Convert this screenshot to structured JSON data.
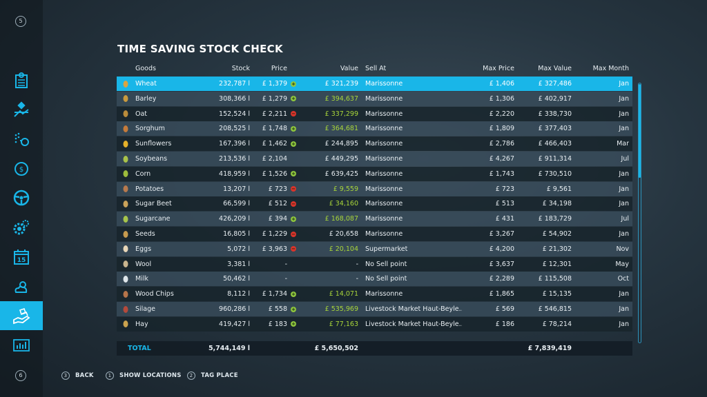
{
  "title": "TIME SAVING STOCK CHECK",
  "sidebar": {
    "top_key": "5",
    "bottom_key": "6",
    "items": [
      {
        "icon": "calendar-list-icon"
      },
      {
        "icon": "satellite-map-icon"
      },
      {
        "icon": "sprayer-icon"
      },
      {
        "icon": "price-tag-icon"
      },
      {
        "icon": "steering-wheel-icon"
      },
      {
        "icon": "gears-icon"
      },
      {
        "icon": "calendar-icon",
        "label": "15"
      },
      {
        "icon": "weather-icon"
      },
      {
        "icon": "hand-money-icon",
        "active": true
      },
      {
        "icon": "statistics-icon"
      }
    ]
  },
  "table": {
    "headers": {
      "goods": "Goods",
      "stock": "Stock",
      "price": "Price",
      "value": "Value",
      "sell_at": "Sell At",
      "max_price": "Max Price",
      "max_value": "Max Value",
      "max_month": "Max Month"
    },
    "rows": [
      {
        "icon": "wheat-icon",
        "goods": "Wheat",
        "stock": "232,787 l",
        "price": "£ 1,379",
        "trend": "up",
        "value": "£ 321,239",
        "value_green": false,
        "sell_at": "Marissonne",
        "max_price": "£ 1,406",
        "max_value": "£ 327,486",
        "max_month": "Jan"
      },
      {
        "icon": "barley-icon",
        "goods": "Barley",
        "stock": "308,366 l",
        "price": "£ 1,279",
        "trend": "up",
        "value": "£ 394,637",
        "value_green": true,
        "sell_at": "Marissonne",
        "max_price": "£ 1,306",
        "max_value": "£ 402,917",
        "max_month": "Jan"
      },
      {
        "icon": "oat-icon",
        "goods": "Oat",
        "stock": "152,524 l",
        "price": "£ 2,211",
        "trend": "down",
        "value": "£ 337,299",
        "value_green": true,
        "sell_at": "Marissonne",
        "max_price": "£ 2,220",
        "max_value": "£ 338,730",
        "max_month": "Jan"
      },
      {
        "icon": "sorghum-icon",
        "goods": "Sorghum",
        "stock": "208,525 l",
        "price": "£ 1,748",
        "trend": "up",
        "value": "£ 364,681",
        "value_green": true,
        "sell_at": "Marissonne",
        "max_price": "£ 1,809",
        "max_value": "£ 377,403",
        "max_month": "Jan"
      },
      {
        "icon": "sunflower-icon",
        "goods": "Sunflowers",
        "stock": "167,396 l",
        "price": "£ 1,462",
        "trend": "up",
        "value": "£ 244,895",
        "value_green": false,
        "sell_at": "Marissonne",
        "max_price": "£ 2,786",
        "max_value": "£ 466,403",
        "max_month": "Mar"
      },
      {
        "icon": "soybean-icon",
        "goods": "Soybeans",
        "stock": "213,536 l",
        "price": "£ 2,104",
        "trend": "",
        "value": "£ 449,295",
        "value_green": false,
        "sell_at": "Marissonne",
        "max_price": "£ 4,267",
        "max_value": "£ 911,314",
        "max_month": "Jul"
      },
      {
        "icon": "corn-icon",
        "goods": "Corn",
        "stock": "418,959 l",
        "price": "£ 1,526",
        "trend": "up",
        "value": "£ 639,425",
        "value_green": false,
        "sell_at": "Marissonne",
        "max_price": "£ 1,743",
        "max_value": "£ 730,510",
        "max_month": "Jan"
      },
      {
        "icon": "potato-icon",
        "goods": "Potatoes",
        "stock": "13,207 l",
        "price": "£ 723",
        "trend": "down",
        "value": "£ 9,559",
        "value_green": true,
        "sell_at": "Marissonne",
        "max_price": "£ 723",
        "max_value": "£ 9,561",
        "max_month": "Jan"
      },
      {
        "icon": "sugar-beet-icon",
        "goods": "Sugar Beet",
        "stock": "66,599 l",
        "price": "£ 512",
        "trend": "down",
        "value": "£ 34,160",
        "value_green": true,
        "sell_at": "Marissonne",
        "max_price": "£ 513",
        "max_value": "£ 34,198",
        "max_month": "Jan"
      },
      {
        "icon": "sugarcane-icon",
        "goods": "Sugarcane",
        "stock": "426,209 l",
        "price": "£ 394",
        "trend": "up",
        "value": "£ 168,087",
        "value_green": true,
        "sell_at": "Marissonne",
        "max_price": "£ 431",
        "max_value": "£ 183,729",
        "max_month": "Jul"
      },
      {
        "icon": "seeds-icon",
        "goods": "Seeds",
        "stock": "16,805 l",
        "price": "£ 1,229",
        "trend": "down",
        "value": "£ 20,658",
        "value_green": false,
        "sell_at": "Marissonne",
        "max_price": "£ 3,267",
        "max_value": "£ 54,902",
        "max_month": "Jan"
      },
      {
        "icon": "eggs-icon",
        "goods": "Eggs",
        "stock": "5,072 l",
        "price": "£ 3,963",
        "trend": "down",
        "value": "£ 20,104",
        "value_green": true,
        "sell_at": "Supermarket",
        "max_price": "£ 4,200",
        "max_value": "£ 21,302",
        "max_month": "Nov"
      },
      {
        "icon": "wool-icon",
        "goods": "Wool",
        "stock": "3,381 l",
        "price": "-",
        "trend": "",
        "value": "-",
        "value_green": false,
        "sell_at": "No Sell point",
        "max_price": "£ 3,637",
        "max_value": "£ 12,301",
        "max_month": "May"
      },
      {
        "icon": "milk-icon",
        "goods": "Milk",
        "stock": "50,462 l",
        "price": "-",
        "trend": "",
        "value": "-",
        "value_green": false,
        "sell_at": "No Sell point",
        "max_price": "£ 2,289",
        "max_value": "£ 115,508",
        "max_month": "Oct"
      },
      {
        "icon": "wood-chips-icon",
        "goods": "Wood Chips",
        "stock": "8,112 l",
        "price": "£ 1,734",
        "trend": "up",
        "value": "£ 14,071",
        "value_green": true,
        "sell_at": "Marissonne",
        "max_price": "£ 1,865",
        "max_value": "£ 15,135",
        "max_month": "Jan"
      },
      {
        "icon": "silage-icon",
        "goods": "Silage",
        "stock": "960,286 l",
        "price": "£ 558",
        "trend": "up",
        "value": "£ 535,969",
        "value_green": true,
        "sell_at": "Livestock Market Haut-Beyle...",
        "max_price": "£ 569",
        "max_value": "£ 546,815",
        "max_month": "Jan"
      },
      {
        "icon": "hay-icon",
        "goods": "Hay",
        "stock": "419,427 l",
        "price": "£ 183",
        "trend": "up",
        "value": "£ 77,163",
        "value_green": true,
        "sell_at": "Livestock Market Haut-Beyle...",
        "max_price": "£ 186",
        "max_value": "£ 78,214",
        "max_month": "Jan"
      }
    ],
    "total": {
      "label": "TOTAL",
      "stock": "5,744,149 l",
      "value": "£ 5,650,502",
      "max_value": "£ 7,839,419"
    }
  },
  "footer": {
    "back": {
      "key": "3",
      "label": "BACK"
    },
    "show_locations": {
      "key": "1",
      "label": "SHOW LOCATIONS"
    },
    "tag_place": {
      "key": "2",
      "label": "TAG PLACE"
    }
  },
  "colors": {
    "accent": "#19b6e8",
    "up": "#8fc73e",
    "down": "#d9342b",
    "green_value": "#a9d63a"
  }
}
